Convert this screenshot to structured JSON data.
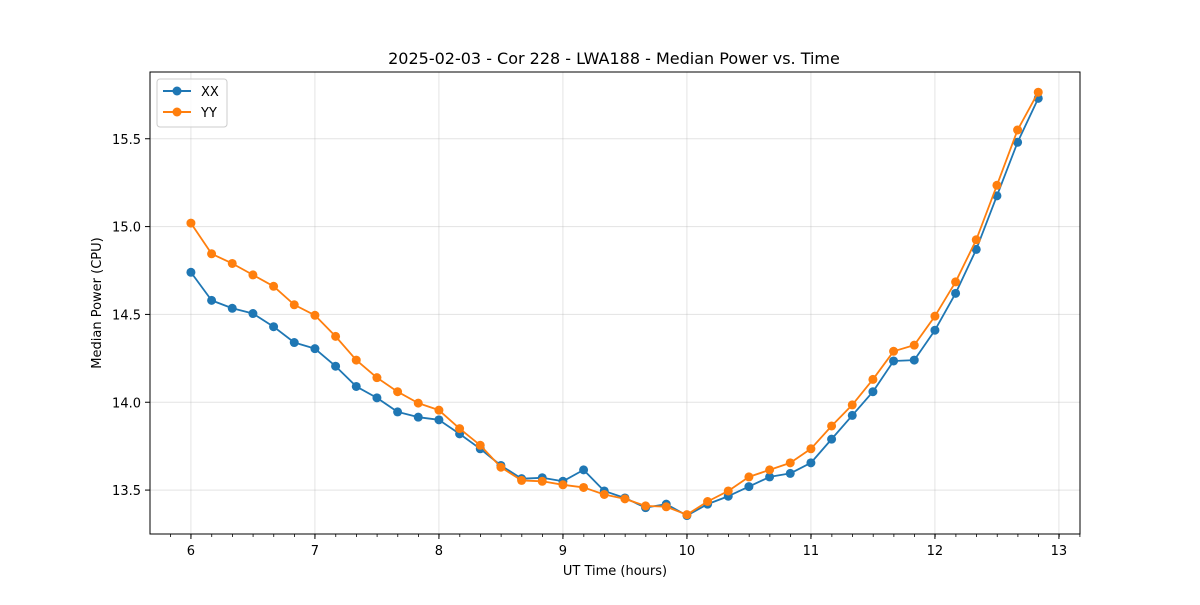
{
  "chart_data": {
    "type": "line",
    "title": "2025-02-03 - Cor 228 - LWA188 - Median Power vs. Time",
    "xlabel": "UT Time (hours)",
    "ylabel": "Median Power (CPU)",
    "xlim": [
      5.67,
      13.17
    ],
    "ylim": [
      13.25,
      15.88
    ],
    "xticks": [
      6,
      7,
      8,
      9,
      10,
      11,
      12,
      13
    ],
    "xtick_labels": [
      "6",
      "7",
      "8",
      "9",
      "10",
      "11",
      "12",
      "13"
    ],
    "xminor_step": 0.1667,
    "yticks": [
      13.5,
      14.0,
      14.5,
      15.0,
      15.5
    ],
    "ytick_labels": [
      "13.5",
      "14.0",
      "14.5",
      "15.0",
      "15.5"
    ],
    "grid": true,
    "legend_position": "top-left",
    "x": [
      6.0,
      6.1667,
      6.3333,
      6.5,
      6.6667,
      6.8333,
      7.0,
      7.1667,
      7.3333,
      7.5,
      7.6667,
      7.8333,
      8.0,
      8.1667,
      8.3333,
      8.5,
      8.6667,
      8.8333,
      9.0,
      9.1667,
      9.3333,
      9.5,
      9.6667,
      9.8333,
      10.0,
      10.1667,
      10.3333,
      10.5,
      10.6667,
      10.8333,
      11.0,
      11.1667,
      11.3333,
      11.5,
      11.6667,
      11.8333,
      12.0,
      12.1667,
      12.3333,
      12.5,
      12.6667,
      12.8333
    ],
    "series": [
      {
        "name": "XX",
        "color": "#1f77b4",
        "values": [
          14.74,
          14.58,
          14.535,
          14.505,
          14.43,
          14.34,
          14.305,
          14.205,
          14.09,
          14.025,
          13.945,
          13.915,
          13.9,
          13.82,
          13.735,
          13.64,
          13.565,
          13.57,
          13.55,
          13.615,
          13.495,
          13.455,
          13.4,
          13.42,
          13.355,
          13.42,
          13.465,
          13.52,
          13.575,
          13.595,
          13.655,
          13.79,
          13.925,
          14.06,
          14.235,
          14.24,
          14.41,
          14.62,
          14.87,
          15.175,
          15.48,
          15.73
        ]
      },
      {
        "name": "YY",
        "color": "#ff7f0e",
        "values": [
          15.02,
          14.845,
          14.79,
          14.725,
          14.66,
          14.555,
          14.495,
          14.375,
          14.24,
          14.14,
          14.06,
          13.995,
          13.955,
          13.85,
          13.755,
          13.63,
          13.555,
          13.55,
          13.53,
          13.515,
          13.475,
          13.45,
          13.41,
          13.405,
          13.36,
          13.435,
          13.495,
          13.575,
          13.615,
          13.655,
          13.735,
          13.865,
          13.985,
          14.13,
          14.29,
          14.325,
          14.49,
          14.685,
          14.925,
          15.235,
          15.55,
          15.765
        ]
      }
    ]
  }
}
